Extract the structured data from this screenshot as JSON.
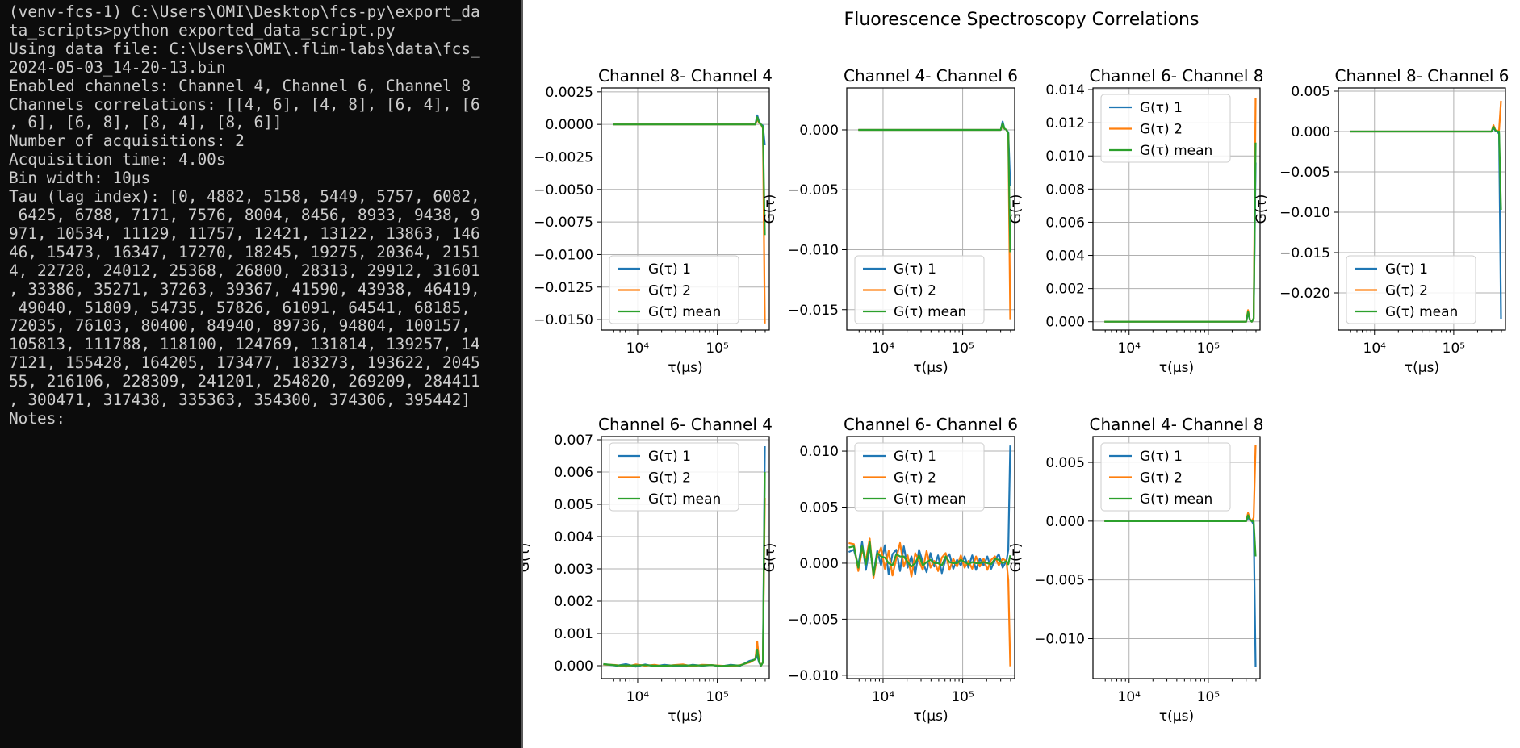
{
  "terminal": {
    "lines": [
      "(venv-fcs-1) C:\\Users\\OMI\\Desktop\\fcs-py\\export_da",
      "ta_scripts>python exported_data_script.py",
      "Using data file: C:\\Users\\OMI\\.flim-labs\\data\\fcs_",
      "2024-05-03_14-20-13.bin",
      "Enabled channels: Channel 4, Channel 6, Channel 8",
      "Channels correlations: [[4, 6], [4, 8], [6, 4], [6",
      ", 6], [6, 8], [8, 4], [8, 6]]",
      "Number of acquisitions: 2",
      "Acquisition time: 4.00s",
      "Bin width: 10µs",
      "Tau (lag index): [0, 4882, 5158, 5449, 5757, 6082,",
      " 6425, 6788, 7171, 7576, 8004, 8456, 8933, 9438, 9",
      "971, 10534, 11129, 11757, 12421, 13122, 13863, 146",
      "46, 15473, 16347, 17270, 18245, 19275, 20364, 2151",
      "4, 22728, 24012, 25368, 26800, 28313, 29912, 31601",
      ", 33386, 35271, 37263, 39367, 41590, 43938, 46419,",
      " 49040, 51809, 54735, 57826, 61091, 64541, 68185,",
      "72035, 76103, 80400, 84940, 89736, 94804, 100157,",
      "105813, 111788, 118100, 124769, 131814, 139257, 14",
      "7121, 155428, 164205, 173477, 183273, 193622, 2045",
      "55, 216106, 228309, 241201, 254820, 269209, 284411",
      ", 300471, 317438, 335363, 354300, 374306, 395442]",
      "Notes:"
    ]
  },
  "figure": {
    "title": "Fluorescence Spectroscopy Correlations"
  },
  "colors": {
    "series1": "#1f77b4",
    "series2": "#ff7f0e",
    "mean": "#2ca02c",
    "grid": "#b0b0b0",
    "terminal_bg": "#0c0c0c",
    "terminal_text": "#cccccc"
  },
  "chart_data": [
    {
      "type": "line",
      "title": "Channel 8- Channel 4",
      "xlabel": "τ(µs)",
      "ylabel": "",
      "xscale": "log",
      "xlim": [
        3500,
        450000
      ],
      "ylim": [
        -0.0158,
        0.0028
      ],
      "yticks": [
        0.0025,
        0.0,
        -0.0025,
        -0.005,
        -0.0075,
        -0.01,
        -0.0125,
        -0.015
      ],
      "ytick_labels": [
        "0.0025",
        "0.0000",
        "−0.0025",
        "−0.0050",
        "−0.0075",
        "−0.0100",
        "−0.0125",
        "−0.0150"
      ],
      "xticks": [
        10000,
        100000
      ],
      "xtick_labels": [
        "10⁴",
        "10⁵"
      ],
      "legend": "lower-left",
      "grid": true,
      "x": [
        4882,
        300471,
        317438,
        335363,
        354300,
        374306,
        395442
      ],
      "series": [
        {
          "name": "G(τ) 1",
          "color": "series1",
          "values": [
            0.0,
            0.0,
            0.0007,
            0.0002,
            0.0,
            -0.0001,
            -0.0016
          ]
        },
        {
          "name": "G(τ) 2",
          "color": "series2",
          "values": [
            0.0,
            0.0,
            0.0004,
            0.0001,
            0.0,
            -0.0003,
            -0.0153
          ]
        },
        {
          "name": "G(τ) mean",
          "color": "mean",
          "values": [
            0.0,
            0.0,
            0.00055,
            0.00015,
            0.0,
            -0.0002,
            -0.0085
          ]
        }
      ]
    },
    {
      "type": "line",
      "title": "Channel 4- Channel 6",
      "xlabel": "τ(µs)",
      "ylabel": "G(τ)",
      "xscale": "log",
      "xlim": [
        3500,
        450000
      ],
      "ylim": [
        -0.0167,
        0.0035
      ],
      "yticks": [
        0.0,
        -0.005,
        -0.01,
        -0.015
      ],
      "ytick_labels": [
        "0.000",
        "−0.005",
        "−0.010",
        "−0.015"
      ],
      "xticks": [
        10000,
        100000
      ],
      "xtick_labels": [
        "10⁴",
        "10⁵"
      ],
      "legend": "lower-left",
      "grid": true,
      "x": [
        4882,
        300471,
        317438,
        335363,
        354300,
        374306,
        395442
      ],
      "series": [
        {
          "name": "G(τ) 1",
          "color": "series1",
          "values": [
            0.0,
            0.0,
            0.0007,
            0.0001,
            0.0,
            -0.0002,
            -0.0047
          ]
        },
        {
          "name": "G(τ) 2",
          "color": "series2",
          "values": [
            0.0,
            0.0,
            0.0004,
            0.0001,
            0.0,
            -0.0004,
            -0.0158
          ]
        },
        {
          "name": "G(τ) mean",
          "color": "mean",
          "values": [
            0.0,
            0.0,
            0.00055,
            0.0001,
            0.0,
            -0.0003,
            -0.0102
          ]
        }
      ]
    },
    {
      "type": "line",
      "title": "Channel 6- Channel 8",
      "xlabel": "τ(µs)",
      "ylabel": "G(τ)",
      "xscale": "log",
      "xlim": [
        3500,
        450000
      ],
      "ylim": [
        -0.0005,
        0.0141
      ],
      "yticks": [
        0.014,
        0.012,
        0.01,
        0.008,
        0.006,
        0.004,
        0.002,
        0.0
      ],
      "ytick_labels": [
        "0.014",
        "0.012",
        "0.010",
        "0.008",
        "0.006",
        "0.004",
        "0.002",
        "0.000"
      ],
      "xticks": [
        10000,
        100000
      ],
      "xtick_labels": [
        "10⁴",
        "10⁵"
      ],
      "legend": "upper-left",
      "grid": true,
      "x": [
        4882,
        300471,
        317438,
        335363,
        354300,
        374306,
        395442
      ],
      "series": [
        {
          "name": "G(τ) 1",
          "color": "series1",
          "values": [
            0.0,
            0.0,
            0.0005,
            0.0001,
            0.0,
            0.0002,
            0.0096
          ]
        },
        {
          "name": "G(τ) 2",
          "color": "series2",
          "values": [
            0.0,
            0.0,
            0.0007,
            0.0001,
            0.0,
            0.0002,
            0.0135
          ]
        },
        {
          "name": "G(τ) mean",
          "color": "mean",
          "values": [
            0.0,
            0.0,
            0.0006,
            0.0001,
            0.0,
            0.0002,
            0.0108
          ]
        }
      ]
    },
    {
      "type": "line",
      "title": "Channel 8- Channel 6",
      "xlabel": "τ(µs)",
      "ylabel": "G(τ)",
      "xscale": "log",
      "xlim": [
        3500,
        450000
      ],
      "ylim": [
        -0.0246,
        0.0054
      ],
      "yticks": [
        0.005,
        0.0,
        -0.005,
        -0.01,
        -0.015,
        -0.02
      ],
      "ytick_labels": [
        "0.005",
        "0.000",
        "−0.005",
        "−0.010",
        "−0.015",
        "−0.020"
      ],
      "xticks": [
        10000,
        100000
      ],
      "xtick_labels": [
        "10⁴",
        "10⁵"
      ],
      "legend": "lower-left",
      "grid": true,
      "x": [
        4882,
        300471,
        317438,
        335363,
        354300,
        374306,
        395442
      ],
      "series": [
        {
          "name": "G(τ) 1",
          "color": "series1",
          "values": [
            0.0,
            0.0,
            0.0004,
            0.0001,
            0.0,
            -0.0003,
            -0.0232
          ]
        },
        {
          "name": "G(τ) 2",
          "color": "series2",
          "values": [
            0.0,
            0.0,
            0.0008,
            0.0002,
            0.0,
            0.0002,
            0.0038
          ]
        },
        {
          "name": "G(τ) mean",
          "color": "mean",
          "values": [
            0.0,
            0.0,
            0.0006,
            0.00015,
            0.0,
            0.0,
            -0.0097
          ]
        }
      ]
    },
    {
      "type": "line",
      "title": "Channel 6- Channel 4",
      "xlabel": "τ(µs)",
      "ylabel": "G(τ)",
      "xscale": "log",
      "xlim": [
        3500,
        450000
      ],
      "ylim": [
        -0.0004,
        0.0071
      ],
      "yticks": [
        0.007,
        0.006,
        0.005,
        0.004,
        0.003,
        0.002,
        0.001,
        0.0
      ],
      "ytick_labels": [
        "0.007",
        "0.006",
        "0.005",
        "0.004",
        "0.003",
        "0.002",
        "0.001",
        "0.000"
      ],
      "xticks": [
        10000,
        100000
      ],
      "xtick_labels": [
        "10⁴",
        "10⁵"
      ],
      "legend": "upper-left",
      "grid": true,
      "x": [
        3700,
        5449,
        7171,
        9438,
        12421,
        16347,
        21514,
        28313,
        37263,
        49040,
        64541,
        84940,
        111788,
        147121,
        193622,
        254820,
        300471,
        317438,
        335363,
        354300,
        374306,
        395442
      ],
      "series": [
        {
          "name": "G(τ) 1",
          "color": "series1",
          "values": [
            5e-05,
            0.0,
            5e-05,
            -3e-05,
            4e-05,
            -2e-05,
            3e-05,
            0.0,
            -2e-05,
            3e-05,
            0.0,
            2e-05,
            -2e-05,
            3e-05,
            0.0,
            0.00015,
            0.0002,
            0.0003,
            0.0001,
            0.0,
            0.0001,
            0.0068
          ]
        },
        {
          "name": "G(τ) 2",
          "color": "series2",
          "values": [
            4e-05,
            2e-05,
            -3e-05,
            4e-05,
            0.0,
            3e-05,
            -2e-05,
            2e-05,
            4e-05,
            -2e-05,
            3e-05,
            2e-05,
            0.0,
            -2e-05,
            2e-05,
            0.0001,
            0.0002,
            0.00075,
            0.00015,
            0.0,
            0.0001,
            0.0052
          ]
        },
        {
          "name": "G(τ) mean",
          "color": "mean",
          "values": [
            5e-05,
            1e-05,
            1e-05,
            1e-05,
            2e-05,
            0.0,
            0.0,
            1e-05,
            1e-05,
            1e-05,
            1e-05,
            2e-05,
            -1e-05,
            1e-05,
            1e-05,
            0.00012,
            0.0002,
            0.0005,
            0.00012,
            0.0,
            0.0001,
            0.006
          ]
        }
      ]
    },
    {
      "type": "line",
      "title": "Channel 6- Channel 6",
      "xlabel": "τ(µs)",
      "ylabel": "G(τ)",
      "xscale": "log",
      "xlim": [
        3500,
        450000
      ],
      "ylim": [
        -0.0103,
        0.0113
      ],
      "yticks": [
        0.01,
        0.005,
        0.0,
        -0.005,
        -0.01
      ],
      "ytick_labels": [
        "0.010",
        "0.005",
        "0.000",
        "−0.005",
        "−0.010"
      ],
      "xticks": [
        10000,
        100000
      ],
      "xtick_labels": [
        "10⁴",
        "10⁵"
      ],
      "legend": "upper-left",
      "grid": true,
      "x": [
        3700,
        4300,
        4882,
        5449,
        6082,
        6788,
        7576,
        8456,
        9438,
        10534,
        11757,
        13122,
        14646,
        16347,
        18245,
        20364,
        22728,
        25368,
        28313,
        31601,
        35271,
        39367,
        43938,
        49040,
        54735,
        61091,
        68185,
        76103,
        84940,
        94804,
        105813,
        118100,
        131814,
        147121,
        164205,
        183273,
        204555,
        228309,
        254820,
        284411,
        317438,
        354300,
        374306,
        395442
      ],
      "series": [
        {
          "name": "G(τ) 1",
          "color": "series1",
          "values": [
            0.001,
            0.0012,
            -0.0002,
            0.0019,
            -0.0006,
            0.0015,
            -0.0009,
            0.0011,
            -0.0002,
            0.0016,
            -0.001,
            0.0008,
            0.0012,
            -0.0007,
            0.0015,
            -0.0004,
            0.0006,
            -0.001,
            0.0012,
            0.0001,
            -0.0008,
            0.0009,
            -0.0003,
            0.0007,
            -0.0009,
            0.0004,
            0.0008,
            -0.0005,
            0.0003,
            -0.0002,
            0.0006,
            -0.0004,
            0.0007,
            -0.0006,
            0.0004,
            -0.0002,
            0.0006,
            -0.0005,
            0.0003,
            0.0008,
            -0.0004,
            0.0002,
            0.0012,
            0.0105
          ]
        },
        {
          "name": "G(τ) 2",
          "color": "series2",
          "values": [
            0.0018,
            0.0017,
            -0.0007,
            0.0012,
            0.0003,
            0.0022,
            -0.0013,
            0.0006,
            0.0014,
            -0.0005,
            0.0011,
            -0.0011,
            0.0004,
            0.0018,
            -0.0003,
            0.0007,
            -0.0012,
            0.0009,
            0.0002,
            -0.0006,
            0.0011,
            -0.0004,
            0.0002,
            -0.0007,
            0.0005,
            0.0009,
            -0.0006,
            0.0004,
            -0.0003,
            0.0007,
            -0.0004,
            0.0002,
            -0.0005,
            0.0006,
            -0.0003,
            0.0004,
            -0.0006,
            0.0003,
            0.0006,
            -0.0002,
            0.0004,
            0.0002,
            -0.0015,
            -0.0092
          ]
        },
        {
          "name": "G(τ) mean",
          "color": "mean",
          "values": [
            0.0014,
            0.0015,
            -0.0004,
            0.0015,
            -0.0001,
            0.0019,
            -0.0011,
            0.0009,
            0.0006,
            0.0005,
            0.0,
            -0.0002,
            0.0008,
            0.0006,
            0.0006,
            0.0001,
            -0.0003,
            0.0,
            0.0007,
            -0.0002,
            0.0001,
            0.0003,
            0.0,
            0.0,
            -0.0002,
            0.0006,
            0.0001,
            0.0,
            0.0,
            0.0003,
            0.0001,
            -0.0001,
            0.0001,
            0.0,
            0.0,
            0.0001,
            0.0,
            -0.0001,
            0.0004,
            0.0003,
            0.0,
            0.0002,
            -0.0001,
            0.0007
          ]
        }
      ]
    },
    {
      "type": "line",
      "title": "Channel 4- Channel 8",
      "xlabel": "τ(µs)",
      "ylabel": "G(τ)",
      "xscale": "log",
      "xlim": [
        3500,
        450000
      ],
      "ylim": [
        -0.0134,
        0.0072
      ],
      "yticks": [
        0.005,
        0.0,
        -0.005,
        -0.01
      ],
      "ytick_labels": [
        "0.005",
        "0.000",
        "−0.005",
        "−0.010"
      ],
      "xticks": [
        10000,
        100000
      ],
      "xtick_labels": [
        "10⁴",
        "10⁵"
      ],
      "legend": "upper-left",
      "grid": true,
      "x": [
        4882,
        300471,
        317438,
        335363,
        354300,
        374306,
        395442
      ],
      "series": [
        {
          "name": "G(τ) 1",
          "color": "series1",
          "values": [
            0.0,
            0.0,
            0.0003,
            0.0001,
            0.0,
            -0.0003,
            -0.0124
          ]
        },
        {
          "name": "G(τ) 2",
          "color": "series2",
          "values": [
            0.0,
            0.0,
            0.0007,
            0.0002,
            0.0,
            0.0003,
            0.0065
          ]
        },
        {
          "name": "G(τ) mean",
          "color": "mean",
          "values": [
            0.0,
            0.0,
            0.0005,
            0.00015,
            0.0,
            0.0,
            -0.003
          ]
        }
      ]
    }
  ]
}
